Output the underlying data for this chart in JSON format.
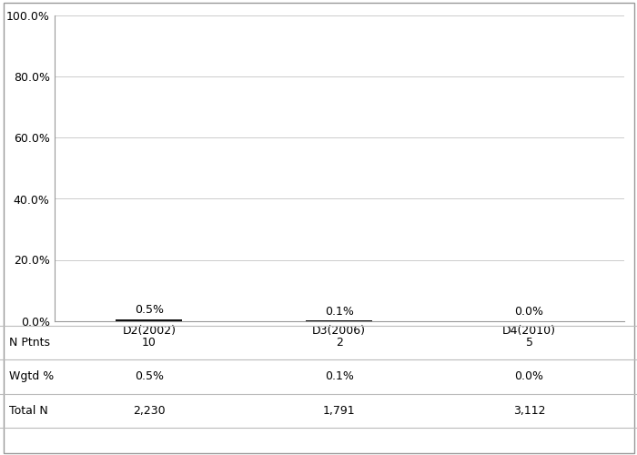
{
  "categories": [
    "D2(2002)",
    "D3(2006)",
    "D4(2010)"
  ],
  "values": [
    0.5,
    0.1,
    0.0
  ],
  "bar_labels": [
    "0.5%",
    "0.1%",
    "0.0%"
  ],
  "n_ptnts": [
    "10",
    "2",
    "5"
  ],
  "wgtd_pct": [
    "0.5%",
    "0.1%",
    "0.0%"
  ],
  "total_n": [
    "2,230",
    "1,791",
    "3,112"
  ],
  "bar_color": "#111111",
  "background_color": "#ffffff",
  "ylim": [
    0,
    100
  ],
  "yticks": [
    0,
    20,
    40,
    60,
    80,
    100
  ],
  "ytick_labels": [
    "0.0%",
    "20.0%",
    "40.0%",
    "60.0%",
    "80.0%",
    "100.0%"
  ],
  "table_row_labels": [
    "N Ptnts",
    "Wgtd %",
    "Total N"
  ],
  "grid_color": "#cccccc",
  "font_size": 9,
  "bar_width": 0.35
}
